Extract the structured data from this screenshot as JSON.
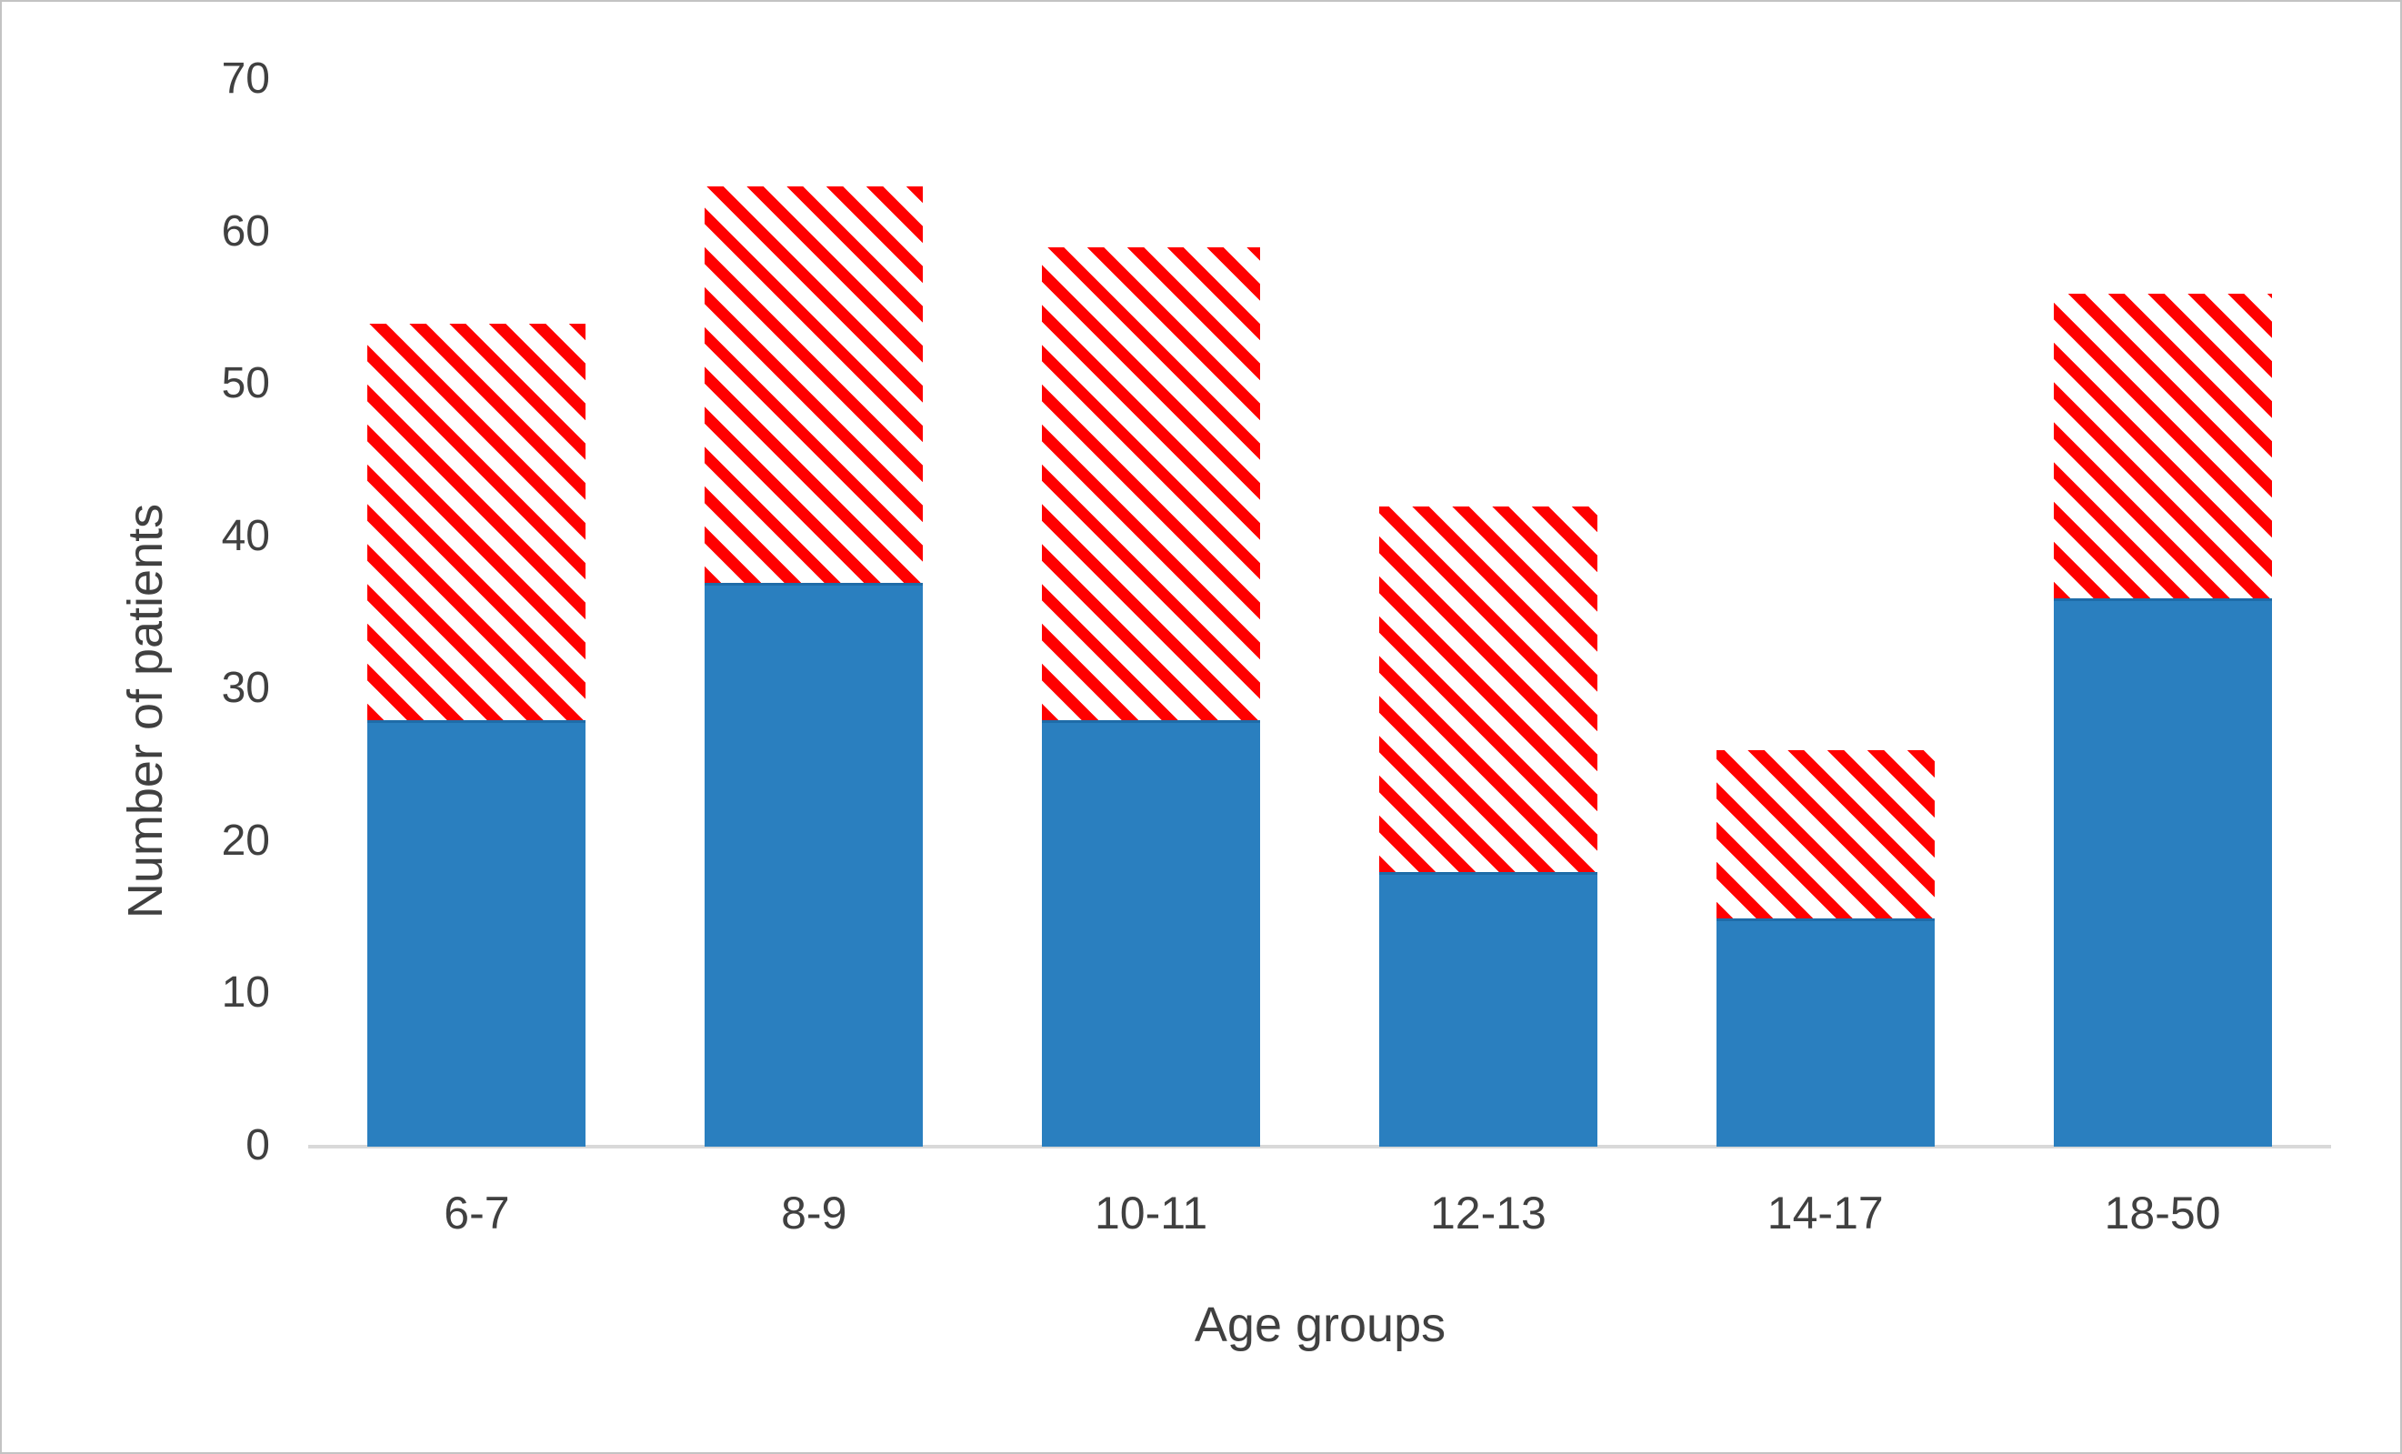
{
  "chart_data": {
    "type": "bar",
    "stacked": true,
    "title": "",
    "xlabel": "Age groups",
    "ylabel": "Number of patients",
    "categories": [
      "6-7",
      "8-9",
      "10-11",
      "12-13",
      "14-17",
      "18-50"
    ],
    "series": [
      {
        "name": "solid-blue-segment",
        "style": "solid",
        "color": "#2a7fbf",
        "edge_color": "#1e6ca8",
        "values": [
          28,
          37,
          28,
          18,
          15,
          36
        ]
      },
      {
        "name": "red-hatched-segment",
        "style": "diagonal-hatch",
        "color": "#ff0000",
        "hatch_bg": "#ffffff",
        "values": [
          26,
          26,
          31,
          24,
          11,
          20
        ]
      }
    ],
    "totals": [
      54,
      63,
      59,
      42,
      26,
      56
    ],
    "ylim": [
      0,
      70
    ],
    "yticks": [
      0,
      10,
      20,
      30,
      40,
      50,
      60,
      70
    ],
    "grid": false,
    "legend_position": "none",
    "colors": {
      "tick_text": "#404040",
      "axis_line": "#d9d9d9",
      "figure_border": "#c3c3c3",
      "background": "#ffffff"
    }
  }
}
